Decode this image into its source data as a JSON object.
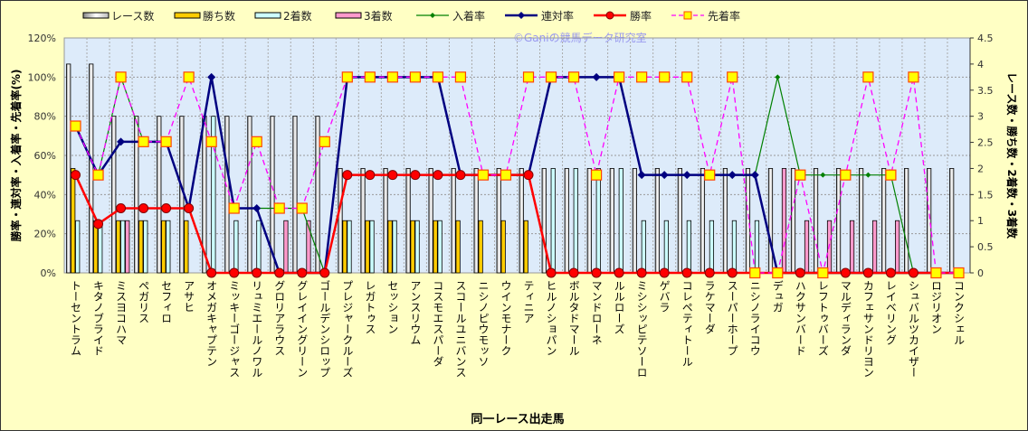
{
  "chart_data": {
    "type": "bar+line",
    "watermark": "©Ganiの競馬データ研究室",
    "xlabel": "同一レース出走馬",
    "ylabel_left": "勝率・連対率・入着率・先着率(%)",
    "ylabel_right": "レース数・勝ち数・2着数・3着数",
    "ylim_left": [
      0,
      120
    ],
    "yticks_left": [
      "0%",
      "20%",
      "40%",
      "60%",
      "80%",
      "100%",
      "120%"
    ],
    "ylim_right": [
      0,
      4.5
    ],
    "yticks_right": [
      "0",
      "0.5",
      "1",
      "1.5",
      "2",
      "2.5",
      "3",
      "3.5",
      "4",
      "4.5"
    ],
    "grid": true,
    "legend_position": "top",
    "categories": [
      "トーセントラム",
      "キタノブライド",
      "ミスヨコハマ",
      "ペガリス",
      "セフィロ",
      "アサヒ",
      "オメガキャプテン",
      "ミッキーゴージャス",
      "リュミエールノワル",
      "グロリアラウス",
      "グレイイングリーン",
      "ゴールデンシロップ",
      "プレジャークルーズ",
      "レガトゥス",
      "セッション",
      "アンスリウム",
      "コスモエスパーダ",
      "スコールユニバンス",
      "ニシノピウモッソ",
      "ウインモナーク",
      "ティニア",
      "ヒルノショパン",
      "ボルタドマール",
      "マンドローネ",
      "ルルローズ",
      "ミシシッピテソーロ",
      "ゲバラ",
      "コレペティトール",
      "ラケマーダ",
      "スーパーホープ",
      "ニシノライコウ",
      "デュガ",
      "ハクサンバード",
      "レフトゥバーズ",
      "マルディランダ",
      "カフェサンドリヨン",
      "レイベリング",
      "シュバルツカイザー",
      "ロジリオン",
      "コンクシェル"
    ],
    "bar_series": [
      {
        "name": "レース数",
        "color": "#FFFFFF",
        "values": [
          4,
          4,
          3,
          3,
          3,
          3,
          3,
          3,
          3,
          3,
          3,
          3,
          2,
          2,
          2,
          2,
          2,
          2,
          2,
          2,
          2,
          2,
          2,
          2,
          2,
          2,
          2,
          2,
          2,
          2,
          2,
          2,
          2,
          2,
          2,
          2,
          2,
          2,
          2,
          2
        ]
      },
      {
        "name": "勝ち数",
        "color": "#FFCC00",
        "values": [
          2,
          1,
          1,
          1,
          1,
          1,
          0,
          0,
          0,
          0,
          0,
          0,
          1,
          1,
          1,
          1,
          1,
          1,
          1,
          1,
          1,
          0,
          0,
          0,
          0,
          0,
          0,
          0,
          0,
          0,
          0,
          0,
          0,
          0,
          0,
          0,
          0,
          0,
          0,
          0
        ]
      },
      {
        "name": "2着数",
        "color": "#CCFFFF",
        "values": [
          1,
          1,
          1,
          1,
          1,
          0,
          3,
          1,
          1,
          0,
          0,
          0,
          1,
          1,
          1,
          1,
          1,
          0,
          0,
          0,
          0,
          2,
          2,
          2,
          2,
          1,
          1,
          1,
          1,
          1,
          1,
          0,
          0,
          0,
          0,
          0,
          0,
          0,
          0,
          0
        ]
      },
      {
        "name": "3着数",
        "color": "#FF99CC",
        "values": [
          0,
          0,
          1,
          0,
          0,
          0,
          0,
          0,
          0,
          1,
          1,
          0,
          0,
          0,
          0,
          0,
          0,
          0,
          0,
          0,
          0,
          0,
          0,
          0,
          0,
          0,
          0,
          0,
          0,
          0,
          0,
          2,
          1,
          1,
          1,
          1,
          1,
          0,
          0,
          0
        ]
      }
    ],
    "line_series": [
      {
        "name": "入着率",
        "color": "#008000",
        "values": [
          75,
          50,
          100,
          67,
          67,
          33,
          100,
          33,
          33,
          33,
          33,
          0,
          100,
          100,
          100,
          100,
          100,
          50,
          50,
          50,
          50,
          100,
          100,
          100,
          100,
          50,
          50,
          50,
          50,
          50,
          50,
          100,
          50,
          50,
          50,
          50,
          50,
          0,
          0,
          0
        ]
      },
      {
        "name": "連対率",
        "color": "#000080",
        "values": [
          75,
          50,
          67,
          67,
          67,
          33,
          100,
          33,
          33,
          0,
          0,
          0,
          100,
          100,
          100,
          100,
          100,
          50,
          50,
          50,
          50,
          100,
          100,
          100,
          100,
          50,
          50,
          50,
          50,
          50,
          50,
          0,
          0,
          0,
          0,
          0,
          0,
          0,
          0,
          0
        ]
      },
      {
        "name": "勝率",
        "color": "#FF0000",
        "values": [
          50,
          25,
          33,
          33,
          33,
          33,
          0,
          0,
          0,
          0,
          0,
          0,
          50,
          50,
          50,
          50,
          50,
          50,
          50,
          50,
          50,
          0,
          0,
          0,
          0,
          0,
          0,
          0,
          0,
          0,
          0,
          0,
          0,
          0,
          0,
          0,
          0,
          0,
          0,
          0
        ]
      },
      {
        "name": "先着率",
        "color": "#FF00FF",
        "values": [
          75,
          50,
          100,
          67,
          67,
          100,
          67,
          33,
          67,
          33,
          33,
          67,
          100,
          100,
          100,
          100,
          100,
          100,
          50,
          50,
          100,
          100,
          100,
          50,
          100,
          100,
          100,
          100,
          50,
          100,
          0,
          0,
          50,
          0,
          50,
          100,
          50,
          100,
          0,
          0
        ]
      }
    ]
  }
}
